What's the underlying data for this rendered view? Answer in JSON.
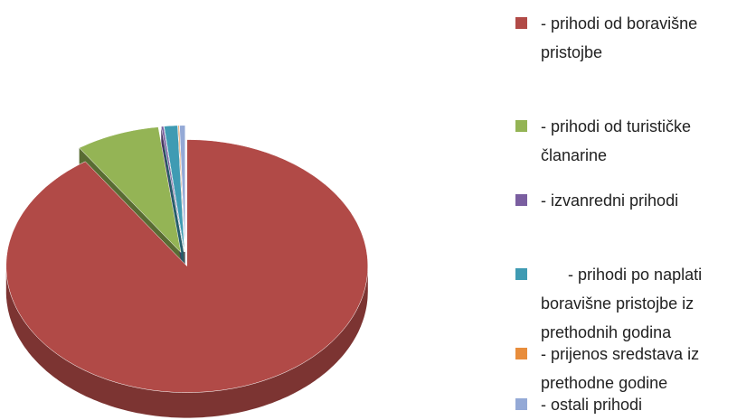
{
  "chart_data": {
    "type": "pie",
    "categories": [
      "- prihodi od boravišne pristojbe",
      "- prihodi od turističke članarine",
      "- izvanredni prihodi",
      "- prihodi po naplati boravišne pristojbe iz prethodnih  godina",
      "- prijenos sredstava iz prethodne godine",
      "- ostali prihodi"
    ],
    "values": [
      90.5,
      7.5,
      0.2,
      1.2,
      0.1,
      0.5
    ],
    "colors": [
      "#b14a47",
      "#94b455",
      "#7a5ea0",
      "#3f9bb3",
      "#e88d3c",
      "#94a9d6"
    ]
  }
}
